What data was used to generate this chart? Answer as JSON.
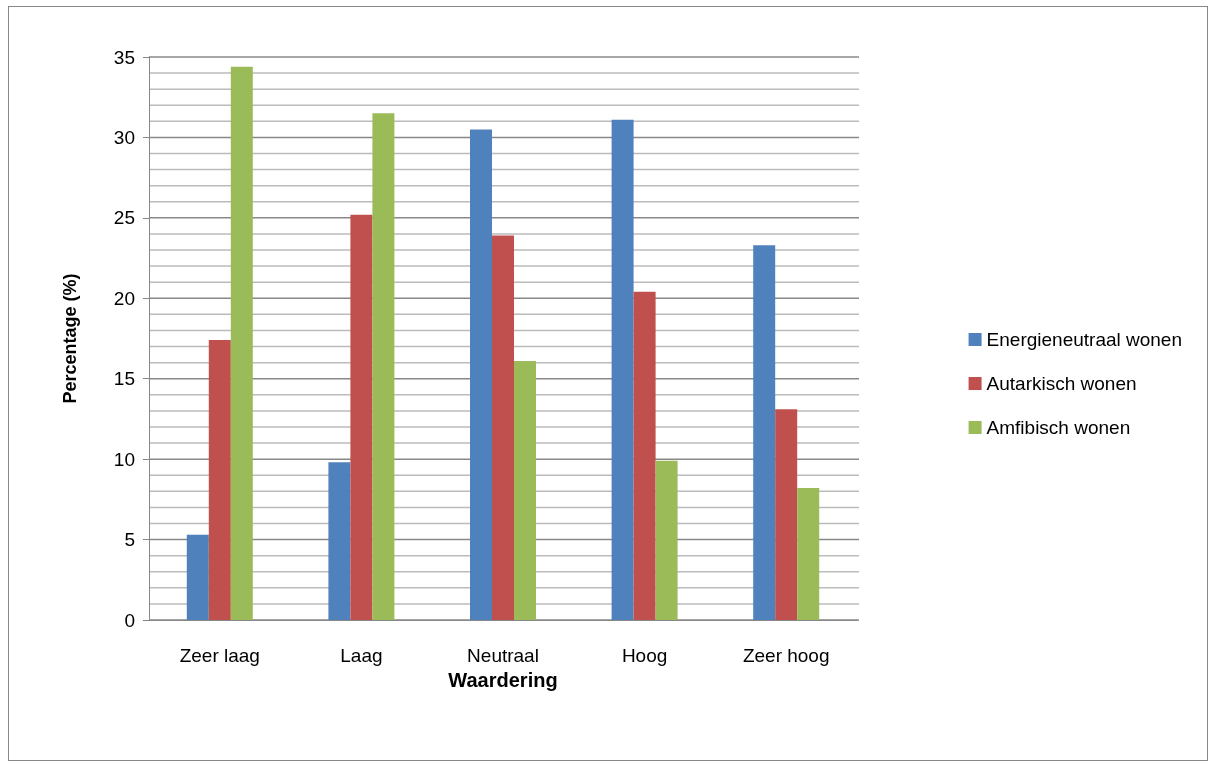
{
  "chart_data": {
    "type": "bar",
    "xlabel": "Waardering",
    "ylabel": "Percentage (%)",
    "categories": [
      "Zeer laag",
      "Laag",
      "Neutraal",
      "Hoog",
      "Zeer hoog"
    ],
    "series": [
      {
        "name": "Energieneutraal wonen",
        "color": "#4f81bd",
        "values": [
          5.3,
          9.8,
          30.5,
          31.1,
          23.3
        ]
      },
      {
        "name": "Autarkisch wonen",
        "color": "#c0504d",
        "values": [
          17.4,
          25.2,
          23.9,
          20.4,
          13.1
        ]
      },
      {
        "name": "Amfibisch wonen",
        "color": "#9bbb59",
        "values": [
          34.4,
          31.5,
          16.1,
          9.9,
          8.2
        ]
      }
    ],
    "ylim": [
      0,
      35
    ],
    "yticks": [
      0,
      {
        "value": 1,
        "label": null
      },
      {
        "value": 2,
        "label": null
      },
      {
        "value": 3,
        "label": null
      },
      {
        "value": 4,
        "label": null
      },
      5,
      {
        "value": 6,
        "label": null
      },
      {
        "value": 7,
        "label": null
      },
      {
        "value": 8,
        "label": null
      },
      {
        "value": 9,
        "label": null
      },
      10,
      {
        "value": 11,
        "label": null
      },
      {
        "value": 12,
        "label": null
      },
      {
        "value": 13,
        "label": null
      },
      {
        "value": 14,
        "label": null
      },
      15,
      {
        "value": 16,
        "label": null
      },
      {
        "value": 17,
        "label": null
      },
      {
        "value": 18,
        "label": null
      },
      {
        "value": 19,
        "label": null
      },
      20,
      {
        "value": 21,
        "label": null
      },
      {
        "value": 22,
        "label": null
      },
      {
        "value": 23,
        "label": null
      },
      {
        "value": 24,
        "label": null
      },
      25,
      {
        "value": 26,
        "label": null
      },
      {
        "value": 27,
        "label": null
      },
      {
        "value": 28,
        "label": null
      },
      {
        "value": 29,
        "label": null
      },
      30,
      {
        "value": 31,
        "label": null
      },
      {
        "value": 32,
        "label": null
      },
      {
        "value": 33,
        "label": null
      },
      {
        "value": 34,
        "label": null
      },
      35
    ],
    "grid": "y",
    "legend": "right"
  }
}
